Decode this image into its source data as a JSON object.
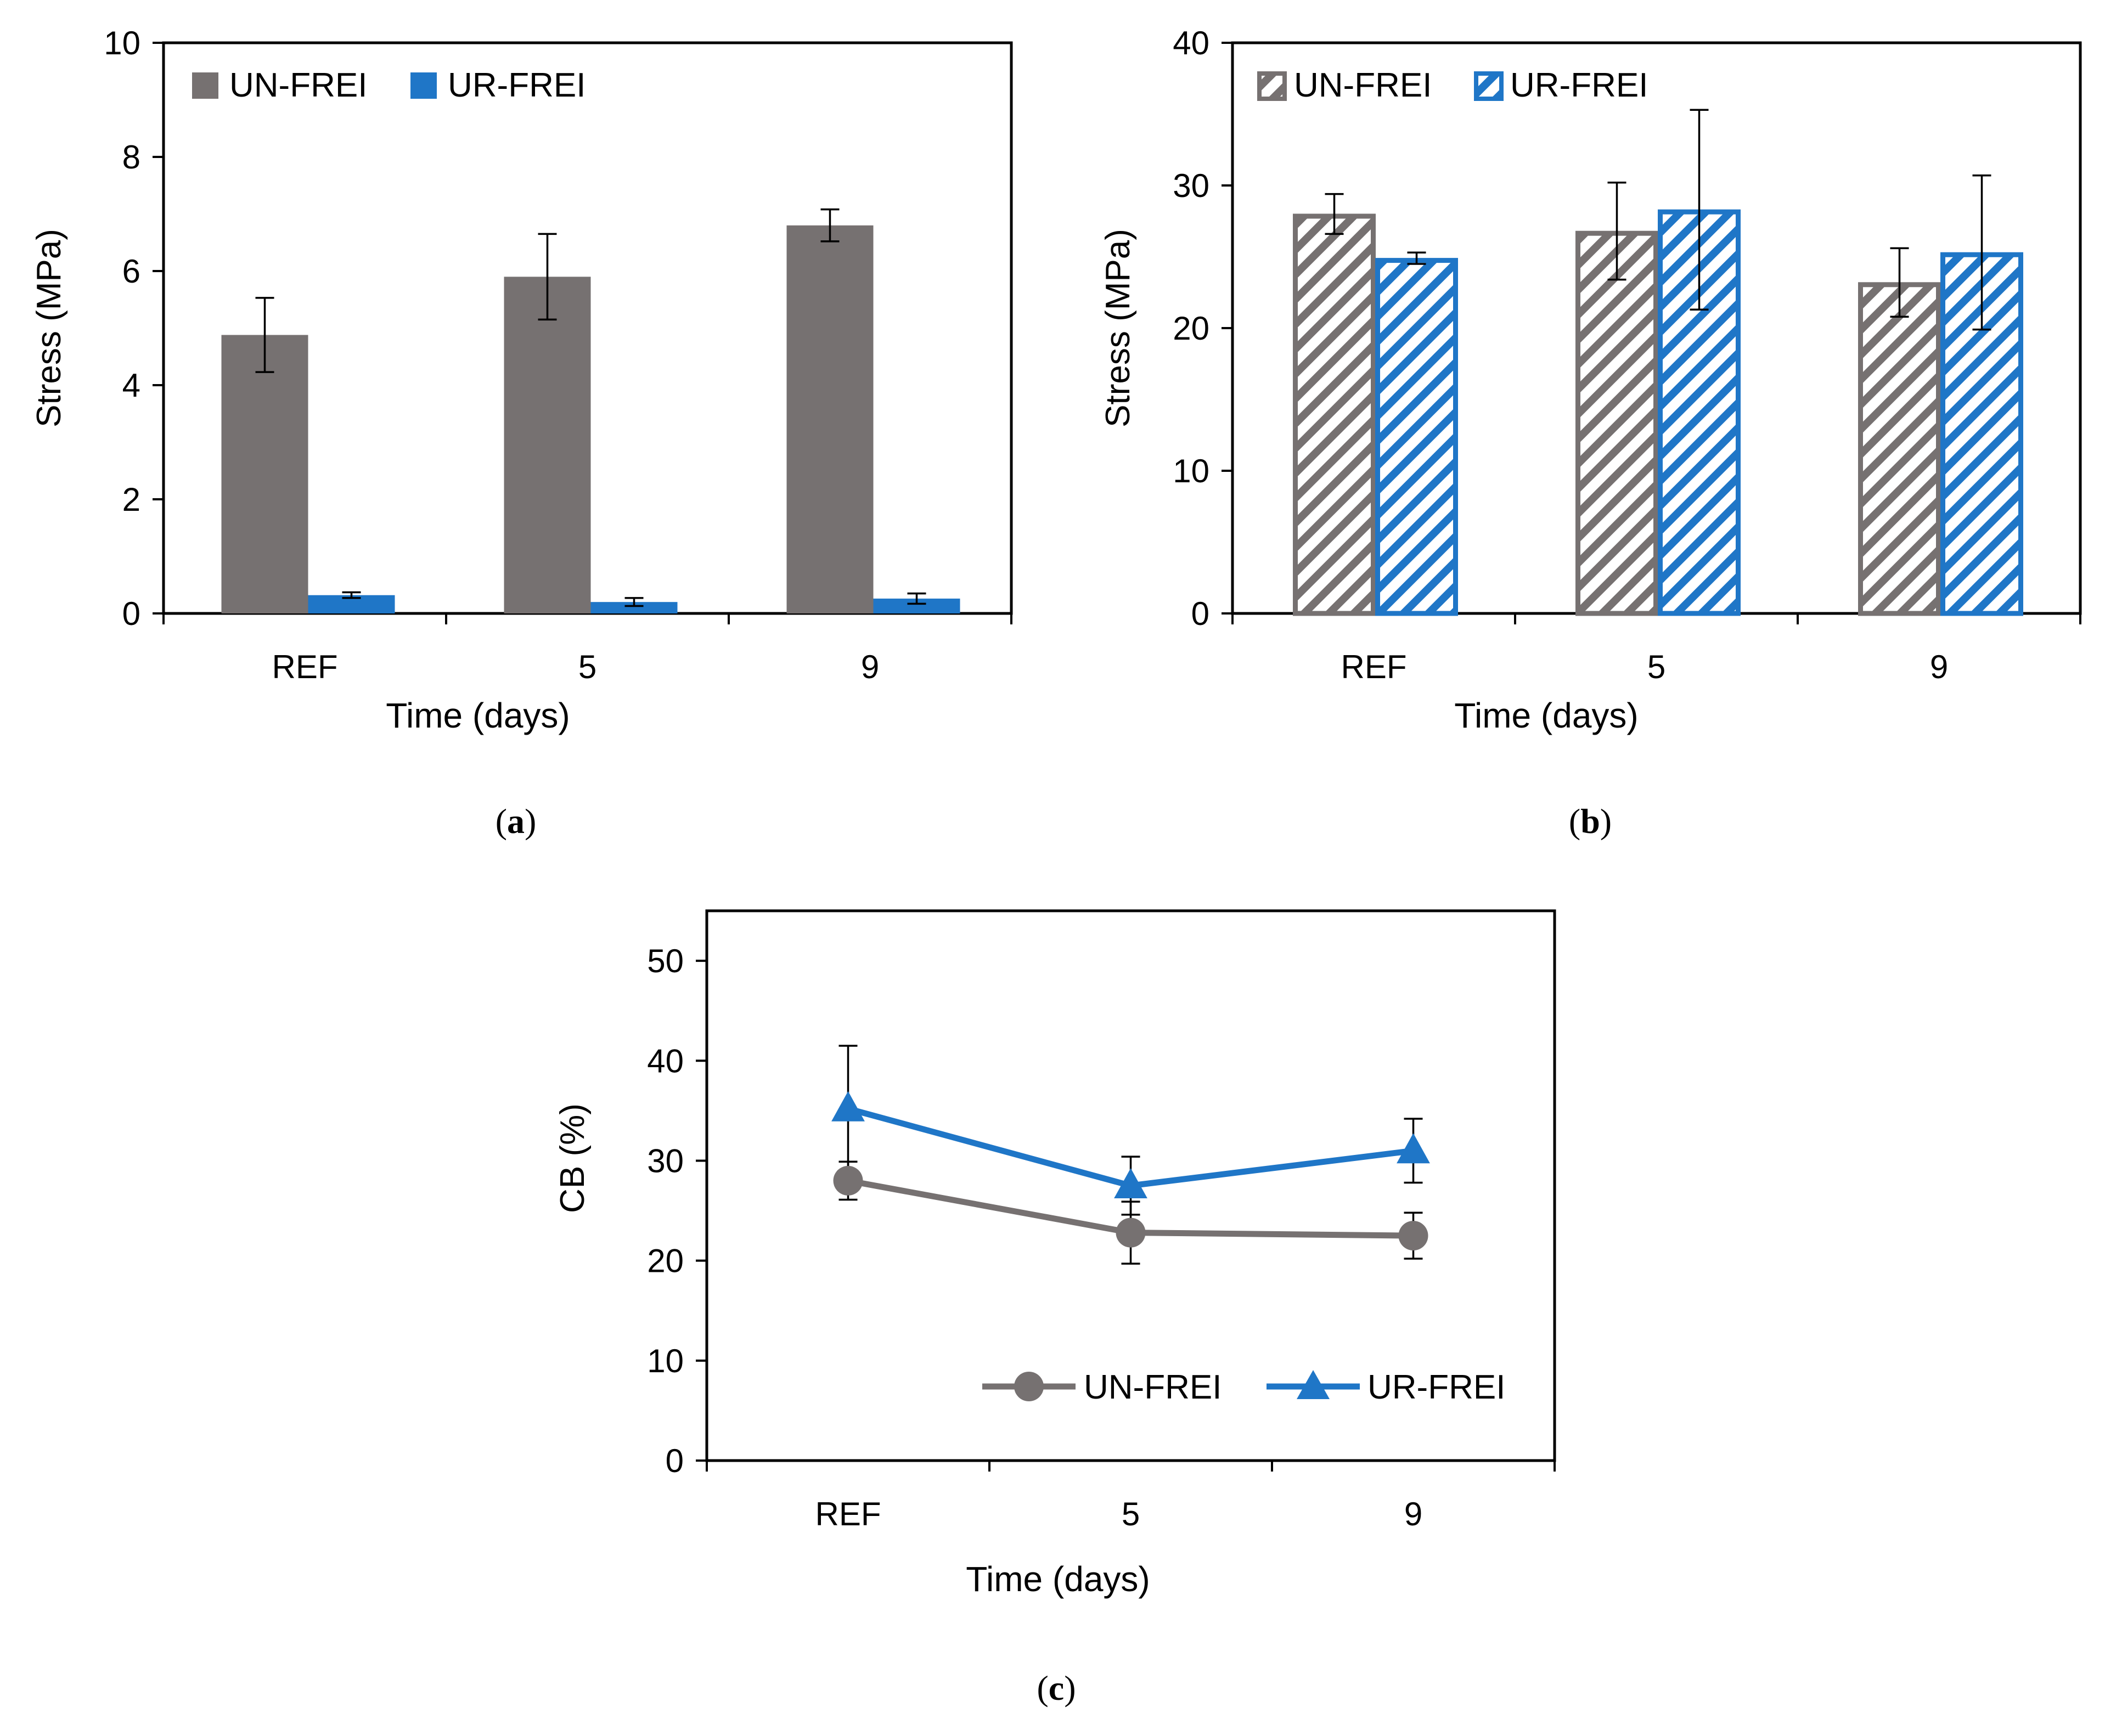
{
  "colors": {
    "un": "#767171",
    "ur": "#1F76C7",
    "axis": "#000000",
    "background": "#FFFFFF"
  },
  "chart_data": [
    {
      "panel_label": "a",
      "type": "bar",
      "style": "solid",
      "categories": [
        "REF",
        "5",
        "9"
      ],
      "series": [
        {
          "name": "UN-FREI",
          "values": [
            4.88,
            5.9,
            6.8
          ],
          "errors": [
            0.65,
            0.75,
            0.28
          ]
        },
        {
          "name": "UR-FREI",
          "values": [
            0.32,
            0.2,
            0.26
          ],
          "errors": [
            0.05,
            0.07,
            0.09
          ]
        }
      ],
      "xlabel": "Time (days)",
      "ylabel": "Stress (MPa)",
      "ylim": [
        0,
        10
      ],
      "yticks": [
        0,
        2,
        4,
        6,
        8,
        10
      ],
      "legend": "top-left",
      "grid": false
    },
    {
      "panel_label": "b",
      "type": "bar",
      "style": "hatched",
      "categories": [
        "REF",
        "5",
        "9"
      ],
      "series": [
        {
          "name": "UN-FREI",
          "values": [
            28.0,
            26.8,
            23.2
          ],
          "errors": [
            1.4,
            3.4,
            2.4
          ]
        },
        {
          "name": "UR-FREI",
          "values": [
            24.9,
            28.3,
            25.3
          ],
          "errors": [
            0.4,
            7.0,
            5.4
          ]
        }
      ],
      "xlabel": "Time (days)",
      "ylabel": "Stress (MPa)",
      "ylim": [
        0,
        40
      ],
      "yticks": [
        0,
        10,
        20,
        30,
        40
      ],
      "legend": "top-left",
      "grid": false
    },
    {
      "panel_label": "c",
      "type": "line",
      "categories": [
        "REF",
        "5",
        "9"
      ],
      "series": [
        {
          "name": "UN-FREI",
          "marker": "circle",
          "values": [
            28.0,
            22.8,
            22.5
          ],
          "errors": [
            1.9,
            3.1,
            2.3
          ]
        },
        {
          "name": "UR-FREI",
          "marker": "triangle",
          "values": [
            35.2,
            27.5,
            31.0
          ],
          "errors": [
            6.3,
            2.9,
            3.2
          ]
        }
      ],
      "xlabel": "Time (days)",
      "ylabel": "CB (%)",
      "ylim": [
        0,
        55
      ],
      "yticks": [
        0,
        10,
        20,
        30,
        40,
        50
      ],
      "legend": "bottom-right",
      "grid": false
    }
  ]
}
